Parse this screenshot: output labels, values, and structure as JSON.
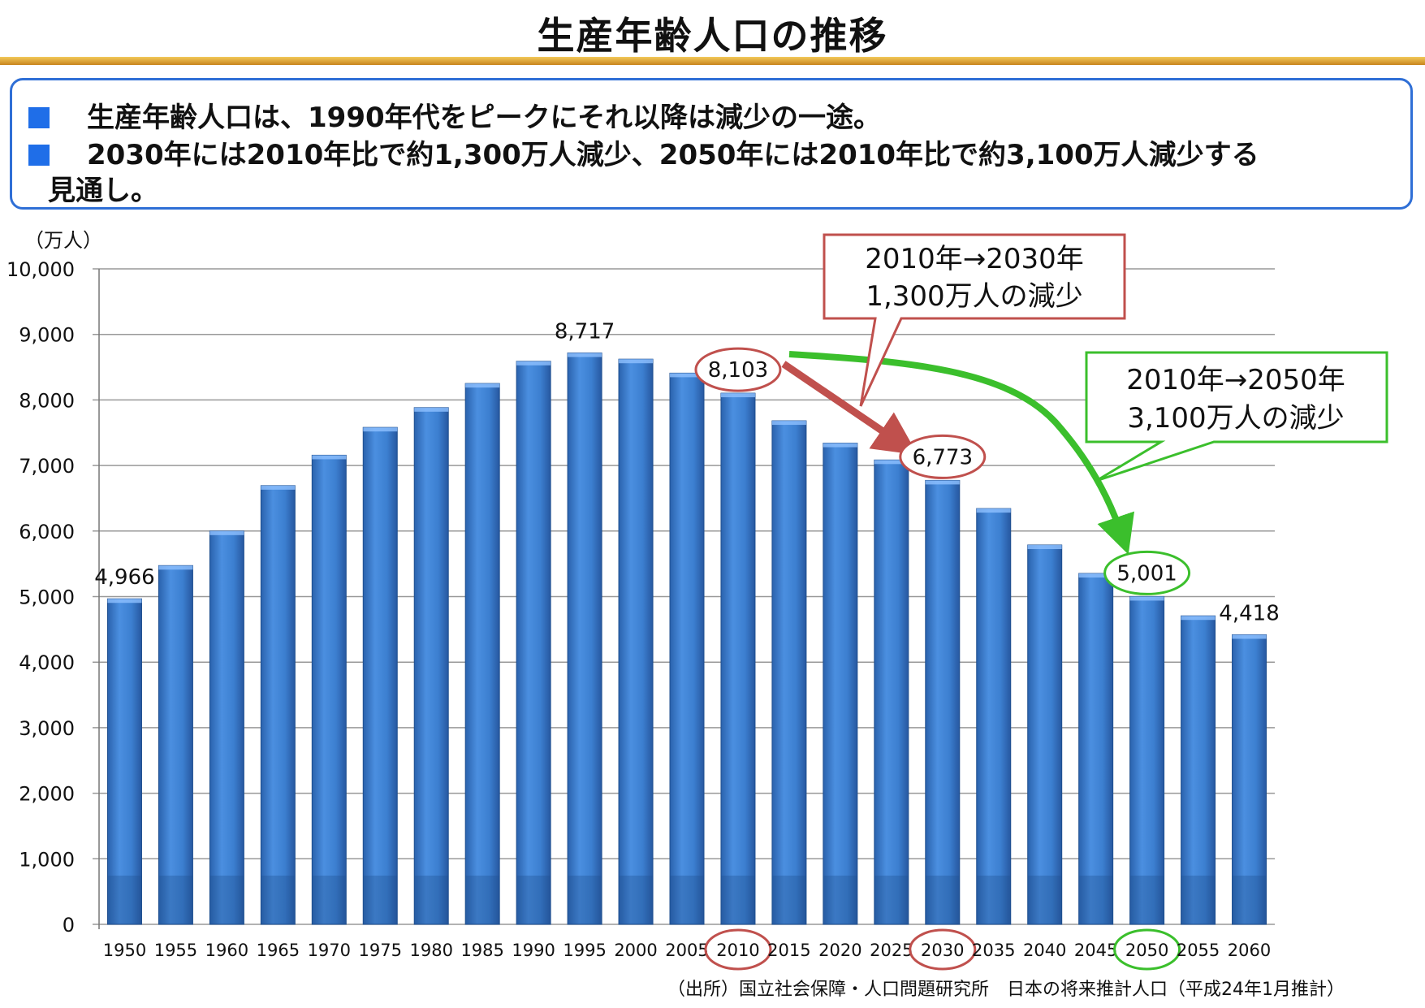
{
  "header": {
    "title": "生産年齢人口の推移"
  },
  "summary": {
    "line1": "生産年齢人口は、1990年代をピークにそれ以降は減少の一途。",
    "line2": "2030年には2010年比で約1,300万人減少、2050年には2010年比で約3,100万人減少する",
    "line3": "見通し。"
  },
  "unit_label": "（万人）",
  "source": "（出所）国立社会保障・人口問題研究所　日本の将来推計人口（平成24年1月推計）",
  "callouts": {
    "red": {
      "line1": "2010年→2030年",
      "line2": "1,300万人の減少"
    },
    "green": {
      "line1": "2010年→2050年",
      "line2": "3,100万人の減少"
    }
  },
  "colors": {
    "bar": "#3c7fd0",
    "red_accent": "#c0504d",
    "green_accent": "#3bbf2c",
    "summary_border": "#2f6fd6"
  },
  "chart_data": {
    "type": "bar",
    "categories": [
      "1950",
      "1955",
      "1960",
      "1965",
      "1970",
      "1975",
      "1980",
      "1985",
      "1990",
      "1995",
      "2000",
      "2005",
      "2010",
      "2015",
      "2020",
      "2025",
      "2030",
      "2035",
      "2040",
      "2045",
      "2050",
      "2055",
      "2060"
    ],
    "values": [
      4966,
      5473,
      6000,
      6693,
      7157,
      7581,
      7883,
      8251,
      8590,
      8717,
      8622,
      8409,
      8103,
      7682,
      7341,
      7084,
      6773,
      6343,
      5787,
      5353,
      5001,
      4706,
      4418
    ],
    "data_labels": {
      "1950": "4,966",
      "1995": "8,717",
      "2010": "8,103",
      "2030": "6,773",
      "2050": "5,001",
      "2060": "4,418"
    },
    "highlighted_categories": [
      "2010",
      "2030",
      "2050"
    ],
    "ylim": [
      0,
      10000
    ],
    "yticks": [
      "0",
      "1,000",
      "2,000",
      "3,000",
      "4,000",
      "5,000",
      "6,000",
      "7,000",
      "8,000",
      "9,000",
      "10,000"
    ],
    "grid": true,
    "legend": "none"
  }
}
